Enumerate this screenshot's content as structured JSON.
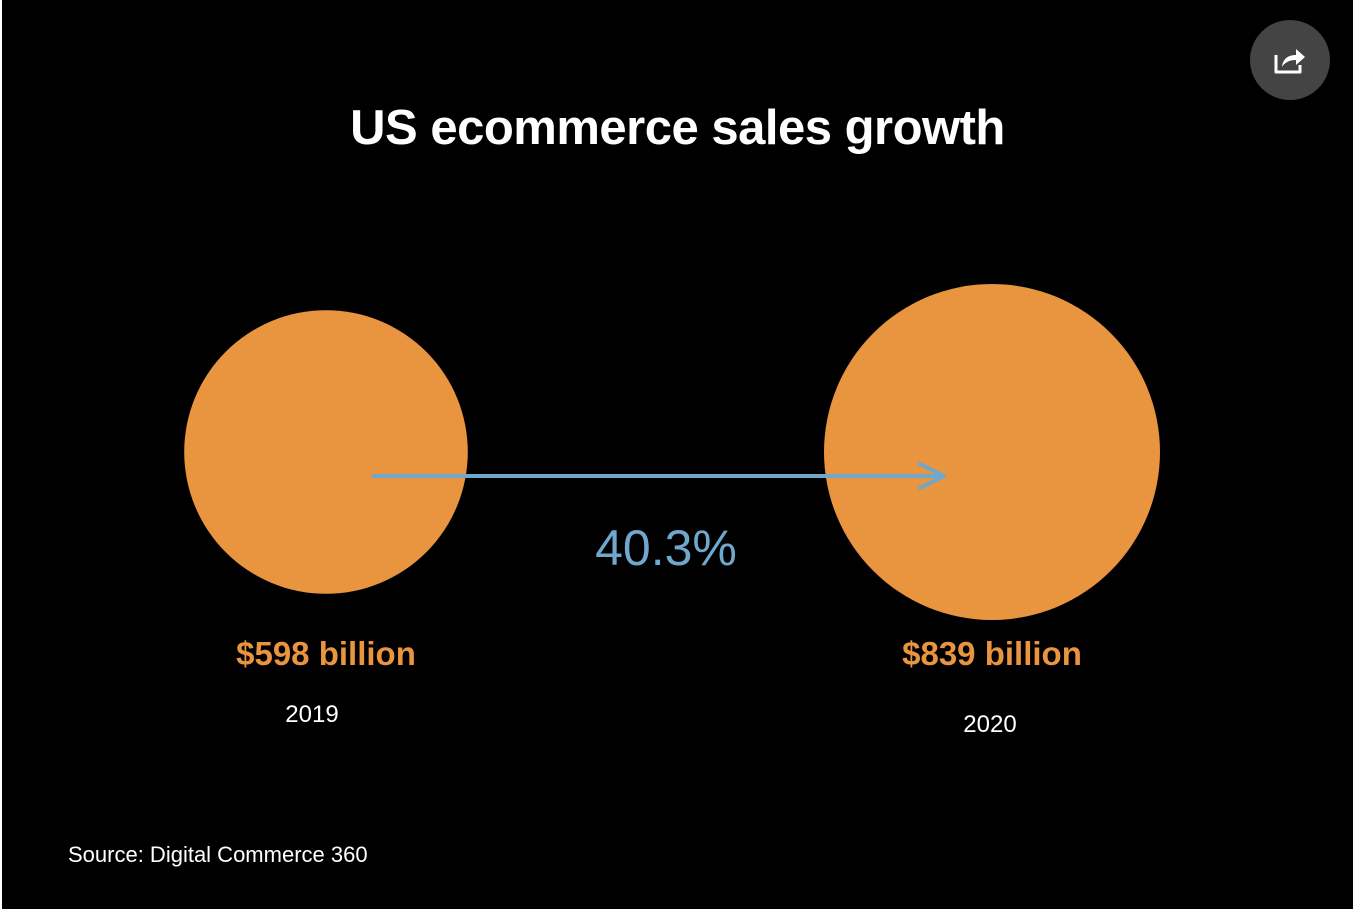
{
  "chart_data": {
    "type": "bubble",
    "title": "US ecommerce sales growth",
    "categories": [
      "2019",
      "2020"
    ],
    "values": [
      598,
      839
    ],
    "value_labels": [
      "$598 billion",
      "$839 billion"
    ],
    "unit": "billion USD",
    "growth_label": "40.3%",
    "growth_percent": 40.3,
    "source": "Source: Digital Commerce 360",
    "colors": {
      "bubble": "#E9943F",
      "arrow": "#6FA8CC",
      "background": "#000000",
      "text": "#FFFFFF"
    }
  },
  "share": {
    "icon": "share-icon"
  }
}
